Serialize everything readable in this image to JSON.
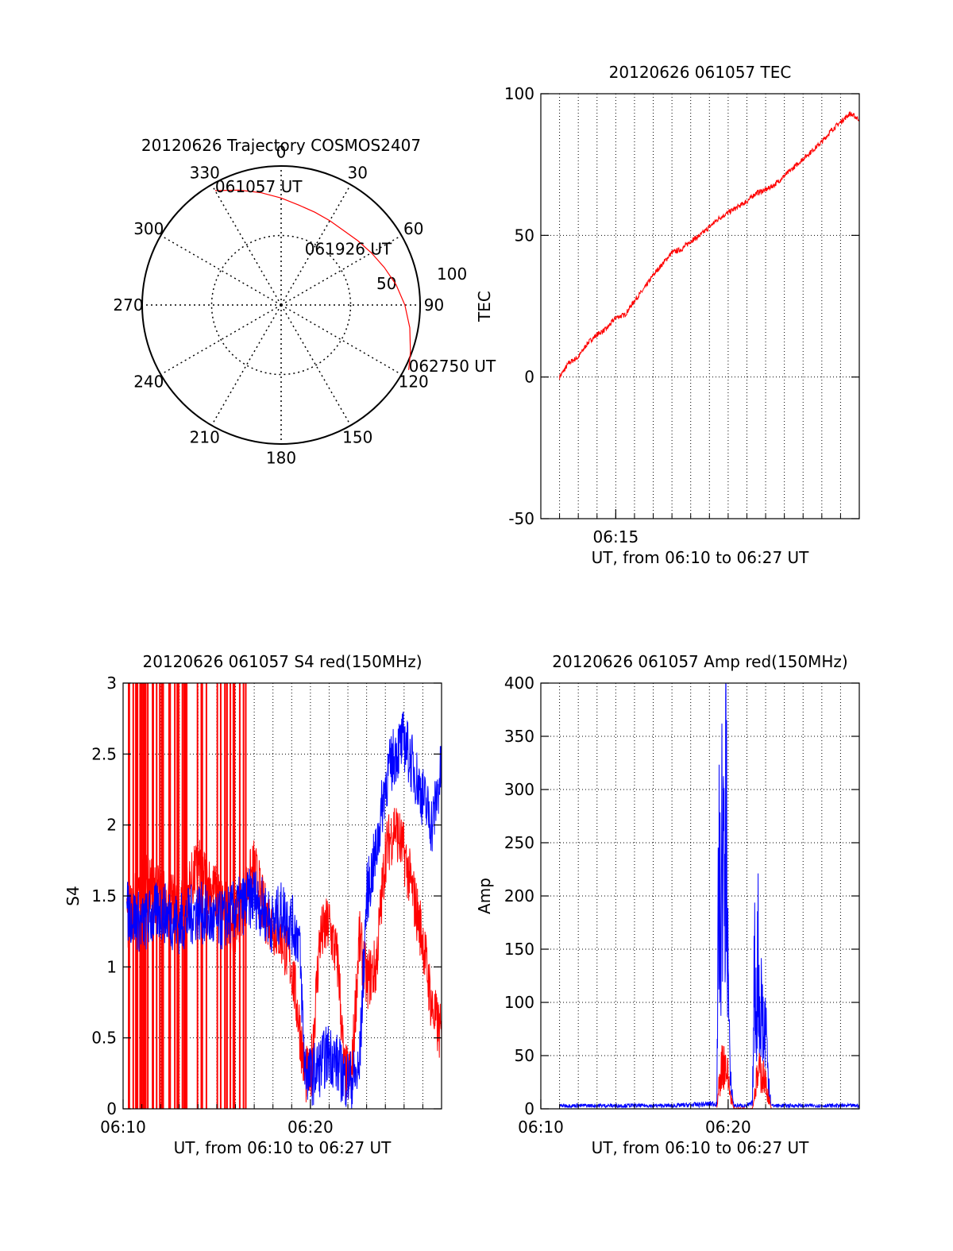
{
  "chart_data": [
    {
      "type": "polar-trajectory",
      "title": "20120626 Trajectory COSMOS2407",
      "azimuth_labels": [
        "0",
        "30",
        "60",
        "90",
        "120",
        "150",
        "180",
        "210",
        "240",
        "270",
        "300",
        "330"
      ],
      "radial_labels": [
        "50",
        "100"
      ],
      "elevation_range": [
        0,
        100
      ],
      "grid": true,
      "line_color": "#ff0000",
      "trajectory_points": [
        {
          "az": 330,
          "r": 95
        },
        {
          "az": 340,
          "r": 88
        },
        {
          "az": 350,
          "r": 82
        },
        {
          "az": 0,
          "r": 77
        },
        {
          "az": 10,
          "r": 73
        },
        {
          "az": 20,
          "r": 71
        },
        {
          "az": 30,
          "r": 70
        },
        {
          "az": 40,
          "r": 70
        },
        {
          "az": 50,
          "r": 72
        },
        {
          "az": 60,
          "r": 75
        },
        {
          "az": 70,
          "r": 79
        },
        {
          "az": 80,
          "r": 84
        },
        {
          "az": 90,
          "r": 89
        },
        {
          "az": 100,
          "r": 94
        },
        {
          "az": 110,
          "r": 99
        },
        {
          "az": 117,
          "r": 103
        }
      ],
      "annotations": [
        {
          "text": "061057 UT",
          "az": 330,
          "r": 95
        },
        {
          "text": "061926 UT",
          "az": 60,
          "r": 75
        },
        {
          "text": "062750 UT",
          "az": 117,
          "r": 103
        }
      ]
    },
    {
      "type": "line",
      "title": "20120626 061057 TEC",
      "xlabel": "UT, from 06:10 to 06:27 UT",
      "ylabel": "TEC",
      "xlim": [
        0,
        17
      ],
      "ylim": [
        -50,
        100
      ],
      "x_ticks": [
        {
          "value": 4,
          "label": "06:15"
        }
      ],
      "y_ticks": [
        {
          "value": -50,
          "label": "-50"
        },
        {
          "value": 0,
          "label": "0"
        },
        {
          "value": 50,
          "label": "50"
        },
        {
          "value": 100,
          "label": "100"
        }
      ],
      "grid": true,
      "series": [
        {
          "color": "#ff0000",
          "x": [
            1.0,
            1.5,
            2.0,
            2.5,
            3.0,
            3.5,
            4.0,
            4.5,
            5.0,
            5.5,
            6.0,
            6.5,
            7.0,
            7.5,
            8.0,
            8.5,
            9.0,
            9.5,
            10.0,
            10.5,
            11.0,
            11.5,
            12.0,
            12.5,
            13.0,
            13.5,
            14.0,
            14.5,
            15.0,
            15.5,
            16.0,
            16.5,
            17.0
          ],
          "values": [
            0,
            5,
            7,
            12,
            15,
            17,
            21,
            22,
            27,
            31,
            36,
            40,
            44,
            45,
            48,
            50,
            53,
            56,
            58,
            60,
            62,
            65,
            66,
            68,
            71,
            74,
            77,
            80,
            83,
            87,
            90,
            93,
            91
          ]
        }
      ]
    },
    {
      "type": "line",
      "title": "20120626 061057 S4 red(150MHz)",
      "xlabel": "UT, from 06:10 to 06:27 UT",
      "ylabel": "S4",
      "xlim": [
        0,
        17
      ],
      "ylim": [
        0,
        3
      ],
      "x_ticks": [
        {
          "value": 0,
          "label": "06:10"
        },
        {
          "value": 10,
          "label": "06:20"
        }
      ],
      "y_ticks": [
        {
          "value": 0,
          "label": "0"
        },
        {
          "value": 0.5,
          "label": "0.5"
        },
        {
          "value": 1,
          "label": "1"
        },
        {
          "value": 1.5,
          "label": "1.5"
        },
        {
          "value": 2,
          "label": "2"
        },
        {
          "value": 2.5,
          "label": "2.5"
        },
        {
          "value": 3,
          "label": "3"
        }
      ],
      "grid": true,
      "series": [
        {
          "color": "#ff0000",
          "x": [
            0.2,
            1.0,
            2.0,
            3.0,
            4.0,
            5.0,
            6.0,
            7.0,
            7.5,
            8.0,
            8.5,
            9.0,
            9.4,
            9.7,
            10.0,
            10.5,
            11.0,
            11.5,
            11.8,
            12.2,
            12.6,
            13.0,
            13.5,
            14.0,
            14.5,
            15.0,
            15.5,
            16.0,
            16.5,
            17.0
          ],
          "values": [
            1.3,
            1.6,
            1.5,
            1.4,
            1.7,
            1.5,
            1.3,
            1.7,
            1.4,
            1.3,
            1.2,
            1.0,
            0.6,
            0.25,
            0.2,
            1.2,
            1.3,
            1.0,
            0.25,
            0.22,
            1.2,
            0.9,
            1.0,
            1.8,
            2.0,
            1.8,
            1.5,
            1.2,
            0.7,
            0.5
          ],
          "spikes": true
        },
        {
          "color": "#0000ff",
          "x": [
            0.2,
            1.0,
            2.0,
            3.0,
            4.0,
            5.0,
            6.0,
            7.0,
            7.5,
            8.0,
            8.5,
            9.0,
            9.4,
            9.7,
            10.0,
            10.5,
            11.0,
            11.5,
            11.8,
            12.2,
            12.6,
            13.0,
            13.5,
            14.0,
            14.5,
            15.0,
            15.5,
            16.0,
            16.5,
            17.0
          ],
          "values": [
            1.4,
            1.3,
            1.4,
            1.3,
            1.4,
            1.3,
            1.4,
            1.5,
            1.4,
            1.3,
            1.4,
            1.3,
            1.2,
            0.3,
            0.22,
            0.3,
            0.4,
            0.3,
            0.22,
            0.2,
            0.25,
            1.5,
            1.8,
            2.3,
            2.5,
            2.6,
            2.4,
            2.2,
            2.0,
            2.4
          ],
          "spikes": false
        }
      ]
    },
    {
      "type": "line",
      "title": "20120626 061057 Amp red(150MHz)",
      "xlabel": "UT, from 06:10 to 06:27 UT",
      "ylabel": "Amp",
      "xlim": [
        0,
        17
      ],
      "ylim": [
        0,
        400
      ],
      "x_ticks": [
        {
          "value": 0,
          "label": "06:10"
        },
        {
          "value": 10,
          "label": "06:20"
        }
      ],
      "y_ticks": [
        {
          "value": 0,
          "label": "0"
        },
        {
          "value": 50,
          "label": "50"
        },
        {
          "value": 100,
          "label": "100"
        },
        {
          "value": 150,
          "label": "150"
        },
        {
          "value": 200,
          "label": "200"
        },
        {
          "value": 250,
          "label": "250"
        },
        {
          "value": 300,
          "label": "300"
        },
        {
          "value": 350,
          "label": "350"
        },
        {
          "value": 400,
          "label": "400"
        }
      ],
      "grid": true,
      "series": [
        {
          "color": "#0000ff",
          "x": [
            1.0,
            4.0,
            7.0,
            8.5,
            9.4,
            9.5,
            9.6,
            9.7,
            9.8,
            9.9,
            10.0,
            10.1,
            10.3,
            11.0,
            11.3,
            11.4,
            11.5,
            11.6,
            11.7,
            11.8,
            11.9,
            12.0,
            12.1,
            12.3,
            14.0,
            17.0
          ],
          "values": [
            3,
            3,
            3,
            4,
            5,
            230,
            150,
            280,
            180,
            310,
            120,
            30,
            3,
            3,
            5,
            130,
            90,
            145,
            80,
            110,
            60,
            90,
            40,
            3,
            3,
            3
          ]
        },
        {
          "color": "#ff0000",
          "x": [
            9.4,
            9.5,
            9.7,
            9.9,
            10.1,
            10.3,
            11.3,
            11.5,
            11.7,
            11.9,
            12.1,
            12.3
          ],
          "values": [
            0,
            20,
            45,
            40,
            15,
            0,
            0,
            25,
            35,
            30,
            15,
            0
          ]
        }
      ]
    }
  ]
}
